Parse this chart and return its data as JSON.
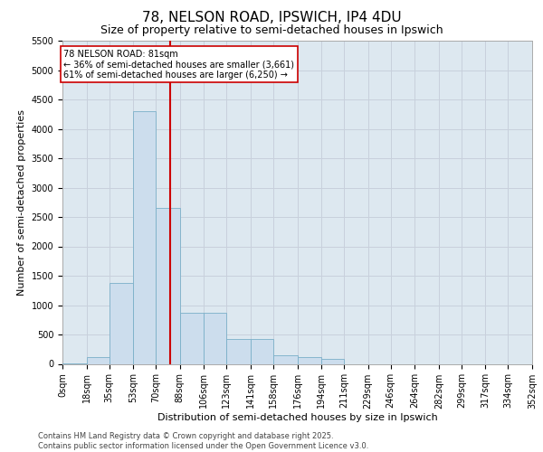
{
  "title_line1": "78, NELSON ROAD, IPSWICH, IP4 4DU",
  "title_line2": "Size of property relative to semi-detached houses in Ipswich",
  "xlabel": "Distribution of semi-detached houses by size in Ipswich",
  "ylabel": "Number of semi-detached properties",
  "annotation_text_line1": "78 NELSON ROAD: 81sqm",
  "annotation_text_line2": "← 36% of semi-detached houses are smaller (3,661)",
  "annotation_text_line3": "61% of semi-detached houses are larger (6,250) →",
  "bin_edges": [
    0,
    18,
    35,
    53,
    70,
    88,
    106,
    123,
    141,
    158,
    176,
    194,
    211,
    229,
    246,
    264,
    282,
    299,
    317,
    334,
    352
  ],
  "bin_counts": [
    10,
    120,
    1380,
    4300,
    2650,
    870,
    870,
    420,
    420,
    150,
    120,
    80,
    0,
    0,
    0,
    0,
    0,
    0,
    0,
    0
  ],
  "bar_color": "#ccdded",
  "bar_edge_color": "#7aafc8",
  "vline_color": "#cc0000",
  "vline_x": 81,
  "annotation_box_color": "#ffffff",
  "annotation_box_edge": "#cc0000",
  "grid_color": "#c8d0dc",
  "background_color": "#dde8f0",
  "footer_text": "Contains HM Land Registry data © Crown copyright and database right 2025.\nContains public sector information licensed under the Open Government Licence v3.0.",
  "ylim": [
    0,
    5500
  ],
  "yticks": [
    0,
    500,
    1000,
    1500,
    2000,
    2500,
    3000,
    3500,
    4000,
    4500,
    5000,
    5500
  ],
  "title1_fontsize": 11,
  "title2_fontsize": 9,
  "xlabel_fontsize": 8,
  "ylabel_fontsize": 8,
  "tick_fontsize": 7,
  "footer_fontsize": 6
}
